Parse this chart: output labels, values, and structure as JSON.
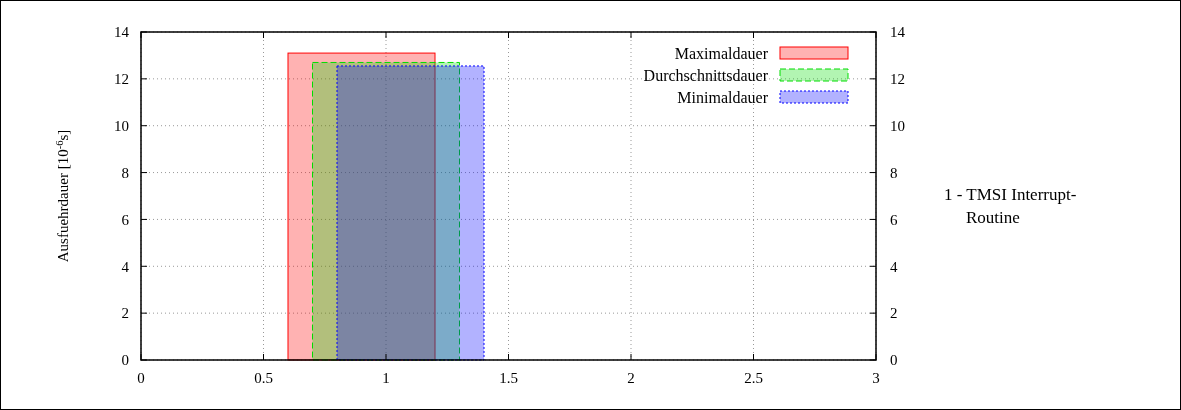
{
  "chart_data": {
    "type": "bar",
    "ylabel": "Ausfuehrdauer [10$^{-6}$s]",
    "series": [
      {
        "name": "Maximaldauer",
        "color": "#ff0000",
        "x": [
          0.9
        ],
        "values": [
          13.1
        ],
        "line_style": "solid"
      },
      {
        "name": "Durchschnittsdauer",
        "color": "#00dd00",
        "x": [
          1.0
        ],
        "values": [
          12.7
        ],
        "line_style": "dashed"
      },
      {
        "name": "Minimaldauer",
        "color": "#0000ff",
        "x": [
          1.1
        ],
        "values": [
          12.55
        ],
        "line_style": "dotted"
      }
    ],
    "xlim": [
      0,
      3
    ],
    "xticks": [
      0,
      0.5,
      1,
      1.5,
      2,
      2.5,
      3
    ],
    "ylim": [
      0,
      14
    ],
    "yticks": [
      0,
      2,
      4,
      6,
      8,
      10,
      12,
      14
    ],
    "y2lim": [
      0,
      14
    ],
    "y2ticks": [
      0,
      2,
      4,
      6,
      8,
      10,
      12,
      14
    ],
    "grid": true,
    "legend": "top right",
    "annotations": [
      "1 - TMSI Interrupt-Routine"
    ]
  }
}
